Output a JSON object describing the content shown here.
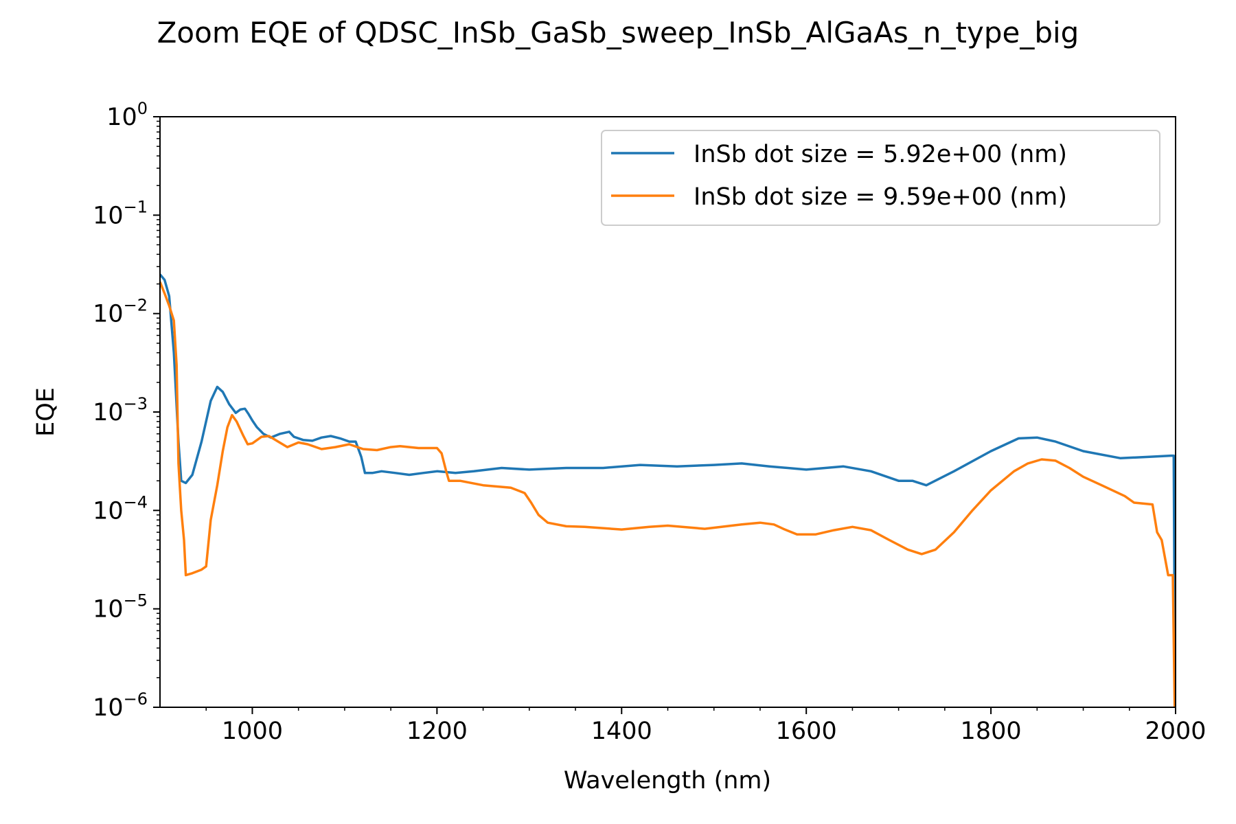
{
  "chart_data": {
    "type": "line",
    "title": "Zoom EQE of QDSC_InSb_GaSb_sweep_InSb_AlGaAs_n_type_big",
    "xlabel": "Wavelength (nm)",
    "ylabel": "EQE",
    "xlim": [
      900,
      2000
    ],
    "ylim": [
      1e-06,
      1
    ],
    "yscale": "log",
    "xticks": [
      {
        "value": 1000,
        "label": "1000"
      },
      {
        "value": 1200,
        "label": "1200"
      },
      {
        "value": 1400,
        "label": "1400"
      },
      {
        "value": 1600,
        "label": "1600"
      },
      {
        "value": 1800,
        "label": "1800"
      },
      {
        "value": 2000,
        "label": "2000"
      }
    ],
    "yticks": [
      {
        "value": 1e-06,
        "base": "10",
        "exp": "−6"
      },
      {
        "value": 1e-05,
        "base": "10",
        "exp": "−5"
      },
      {
        "value": 0.0001,
        "base": "10",
        "exp": "−4"
      },
      {
        "value": 0.001,
        "base": "10",
        "exp": "−3"
      },
      {
        "value": 0.01,
        "base": "10",
        "exp": "−2"
      },
      {
        "value": 0.1,
        "base": "10",
        "exp": "−1"
      },
      {
        "value": 1,
        "base": "10",
        "exp": "0"
      }
    ],
    "grid": false,
    "legend_position": "top-right",
    "series": [
      {
        "name": "InSb dot size = 5.92e+00 (nm)",
        "color": "#1f77b4",
        "points": [
          [
            900,
            0.025
          ],
          [
            905,
            0.022
          ],
          [
            910,
            0.015
          ],
          [
            915,
            0.004
          ],
          [
            920,
            0.0005
          ],
          [
            923,
            0.0002
          ],
          [
            928,
            0.00019
          ],
          [
            935,
            0.00023
          ],
          [
            945,
            0.0005
          ],
          [
            955,
            0.0013
          ],
          [
            962,
            0.0018
          ],
          [
            968,
            0.0016
          ],
          [
            975,
            0.0012
          ],
          [
            982,
            0.00098
          ],
          [
            987,
            0.00106
          ],
          [
            992,
            0.00108
          ],
          [
            996,
            0.00095
          ],
          [
            1000,
            0.00082
          ],
          [
            1005,
            0.0007
          ],
          [
            1012,
            0.0006
          ],
          [
            1020,
            0.00055
          ],
          [
            1030,
            0.0006
          ],
          [
            1040,
            0.00063
          ],
          [
            1045,
            0.00056
          ],
          [
            1055,
            0.00052
          ],
          [
            1065,
            0.00051
          ],
          [
            1075,
            0.00055
          ],
          [
            1085,
            0.00057
          ],
          [
            1095,
            0.00054
          ],
          [
            1105,
            0.0005
          ],
          [
            1112,
            0.0005
          ],
          [
            1118,
            0.00035
          ],
          [
            1122,
            0.00024
          ],
          [
            1130,
            0.00024
          ],
          [
            1140,
            0.00025
          ],
          [
            1155,
            0.00024
          ],
          [
            1170,
            0.00023
          ],
          [
            1185,
            0.00024
          ],
          [
            1200,
            0.00025
          ],
          [
            1220,
            0.00024
          ],
          [
            1240,
            0.00025
          ],
          [
            1270,
            0.00027
          ],
          [
            1300,
            0.00026
          ],
          [
            1340,
            0.00027
          ],
          [
            1380,
            0.00027
          ],
          [
            1420,
            0.00029
          ],
          [
            1460,
            0.00028
          ],
          [
            1500,
            0.00029
          ],
          [
            1530,
            0.0003
          ],
          [
            1560,
            0.00028
          ],
          [
            1600,
            0.00026
          ],
          [
            1640,
            0.00028
          ],
          [
            1670,
            0.00025
          ],
          [
            1700,
            0.0002
          ],
          [
            1715,
            0.0002
          ],
          [
            1730,
            0.00018
          ],
          [
            1760,
            0.00025
          ],
          [
            1800,
            0.0004
          ],
          [
            1830,
            0.00054
          ],
          [
            1850,
            0.00055
          ],
          [
            1870,
            0.0005
          ],
          [
            1900,
            0.0004
          ],
          [
            1940,
            0.00034
          ],
          [
            1970,
            0.00035
          ],
          [
            1995,
            0.00036
          ],
          [
            1998,
            0.00036
          ],
          [
            1999,
            5e-06
          ]
        ]
      },
      {
        "name": "InSb dot size = 9.59e+00 (nm)",
        "color": "#ff7f0e",
        "points": [
          [
            900,
            0.021
          ],
          [
            905,
            0.016
          ],
          [
            910,
            0.012
          ],
          [
            915,
            0.0085
          ],
          [
            918,
            0.003
          ],
          [
            920,
            0.0003
          ],
          [
            923,
            0.0001
          ],
          [
            926,
            5e-05
          ],
          [
            928,
            2.2e-05
          ],
          [
            935,
            2.3e-05
          ],
          [
            945,
            2.5e-05
          ],
          [
            950,
            2.7e-05
          ],
          [
            955,
            8e-05
          ],
          [
            962,
            0.00018
          ],
          [
            968,
            0.0004
          ],
          [
            973,
            0.0007
          ],
          [
            978,
            0.00093
          ],
          [
            983,
            0.0008
          ],
          [
            990,
            0.00058
          ],
          [
            995,
            0.00047
          ],
          [
            1000,
            0.00048
          ],
          [
            1010,
            0.00056
          ],
          [
            1018,
            0.00057
          ],
          [
            1028,
            0.0005
          ],
          [
            1038,
            0.00044
          ],
          [
            1050,
            0.00049
          ],
          [
            1060,
            0.00047
          ],
          [
            1075,
            0.00042
          ],
          [
            1090,
            0.00044
          ],
          [
            1105,
            0.00047
          ],
          [
            1120,
            0.00042
          ],
          [
            1135,
            0.00041
          ],
          [
            1150,
            0.00044
          ],
          [
            1160,
            0.00045
          ],
          [
            1180,
            0.00043
          ],
          [
            1200,
            0.00043
          ],
          [
            1205,
            0.00038
          ],
          [
            1210,
            0.00025
          ],
          [
            1213,
            0.0002
          ],
          [
            1225,
            0.0002
          ],
          [
            1250,
            0.00018
          ],
          [
            1280,
            0.00017
          ],
          [
            1295,
            0.00015
          ],
          [
            1302,
            0.00012
          ],
          [
            1310,
            9e-05
          ],
          [
            1320,
            7.5e-05
          ],
          [
            1340,
            6.9e-05
          ],
          [
            1360,
            6.8e-05
          ],
          [
            1400,
            6.4e-05
          ],
          [
            1430,
            6.8e-05
          ],
          [
            1450,
            7e-05
          ],
          [
            1490,
            6.5e-05
          ],
          [
            1530,
            7.2e-05
          ],
          [
            1550,
            7.5e-05
          ],
          [
            1565,
            7.2e-05
          ],
          [
            1575,
            6.5e-05
          ],
          [
            1590,
            5.7e-05
          ],
          [
            1610,
            5.7e-05
          ],
          [
            1630,
            6.3e-05
          ],
          [
            1650,
            6.8e-05
          ],
          [
            1670,
            6.3e-05
          ],
          [
            1690,
            5e-05
          ],
          [
            1710,
            4e-05
          ],
          [
            1725,
            3.6e-05
          ],
          [
            1740,
            4e-05
          ],
          [
            1760,
            6e-05
          ],
          [
            1780,
            0.0001
          ],
          [
            1800,
            0.00016
          ],
          [
            1825,
            0.00025
          ],
          [
            1840,
            0.0003
          ],
          [
            1855,
            0.00033
          ],
          [
            1870,
            0.00032
          ],
          [
            1885,
            0.00027
          ],
          [
            1900,
            0.00022
          ],
          [
            1920,
            0.00018
          ],
          [
            1945,
            0.00014
          ],
          [
            1955,
            0.00012
          ],
          [
            1975,
            0.000115
          ],
          [
            1980,
            6e-05
          ],
          [
            1985,
            5e-05
          ],
          [
            1992,
            2.2e-05
          ],
          [
            1997,
            2.2e-05
          ],
          [
            1999,
            1e-06
          ]
        ]
      }
    ]
  }
}
